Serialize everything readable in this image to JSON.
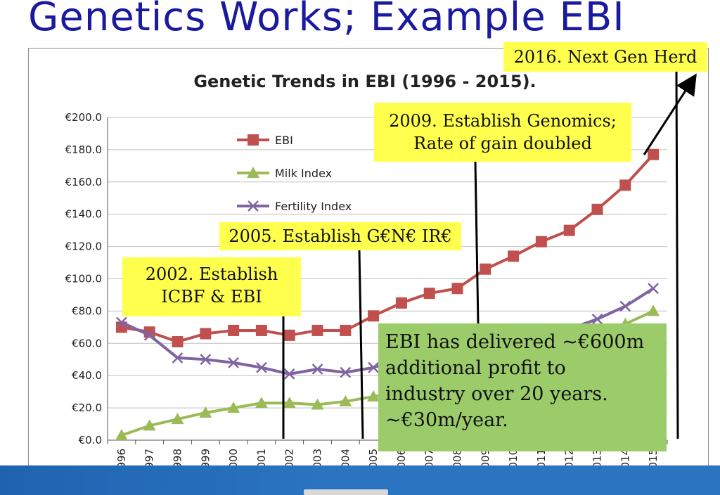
{
  "slide": {
    "title": "Genetics Works; Example EBI"
  },
  "chart_data": {
    "type": "line",
    "title": "Genetic Trends in EBI (1996 - 2015).",
    "categories": [
      "1996",
      "1997",
      "1998",
      "1999",
      "2000",
      "2001",
      "2002",
      "2003",
      "2004",
      "2005",
      "2006",
      "2007",
      "2008",
      "2009",
      "2010",
      "2011",
      "2012",
      "2013",
      "2014",
      "2015"
    ],
    "y_ticks": [
      "€0.0",
      "€20.0",
      "€40.0",
      "€60.0",
      "€80.0",
      "€100.0",
      "€120.0",
      "€140.0",
      "€160.0",
      "€180.0",
      "€200.0"
    ],
    "ylim": [
      0,
      200
    ],
    "grid": true,
    "legend_position": "top-left",
    "series": [
      {
        "name": "EBI",
        "color": "#c0504d",
        "marker": "square",
        "values": [
          70,
          67,
          61,
          66,
          68,
          68,
          65,
          68,
          68,
          77,
          85,
          91,
          94,
          106,
          114,
          123,
          130,
          143,
          158,
          177
        ]
      },
      {
        "name": "Milk Index",
        "color": "#9bbb59",
        "marker": "triangle",
        "values": [
          3,
          9,
          13,
          17,
          20,
          23,
          23,
          22,
          24,
          27,
          30,
          33,
          37,
          42,
          48,
          55,
          60,
          65,
          72,
          80
        ]
      },
      {
        "name": "Fertility Index",
        "color": "#8064a2",
        "marker": "x",
        "values": [
          73,
          65,
          51,
          50,
          48,
          45,
          41,
          44,
          42,
          45,
          50,
          54,
          57,
          61,
          64,
          66,
          69,
          75,
          83,
          94
        ]
      }
    ]
  },
  "annotations": {
    "note_2016": "2016. Next Gen Herd",
    "note_2009_line1": "2009. Establish Genomics;",
    "note_2009_line2": "Rate of gain doubled",
    "note_2005": "2005. Establish G€N€ IR€",
    "note_2002_line1": "2002. Establish",
    "note_2002_line2": "ICBF & EBI",
    "summary_line1": "EBI has delivered ~€600m",
    "summary_line2": "additional profit to",
    "summary_line3": "industry over 20 years.",
    "summary_line4": "~€30m/year."
  }
}
